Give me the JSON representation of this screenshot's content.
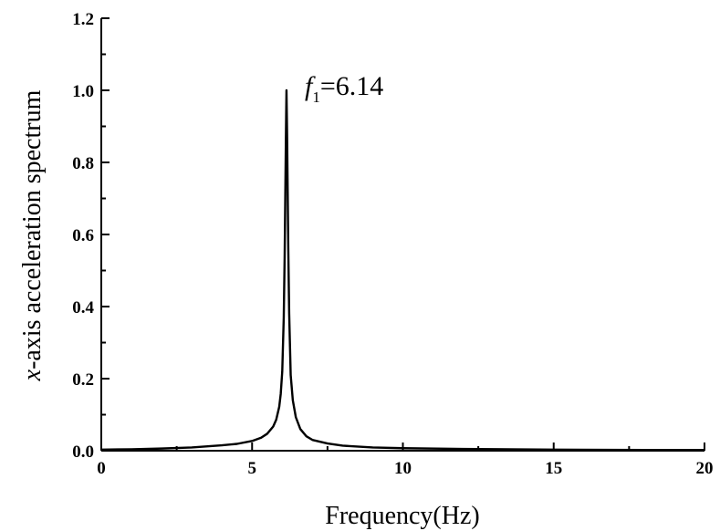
{
  "chart_data": {
    "type": "line",
    "title": "",
    "xlabel": "Frequency(Hz)",
    "ylabel_italic": "x",
    "ylabel_rest": "-axis acceleration spectrum",
    "xlim": [
      0,
      20
    ],
    "ylim": [
      0,
      1.2
    ],
    "x_ticks": [
      0,
      5,
      10,
      15,
      20
    ],
    "y_ticks": [
      0.0,
      0.2,
      0.4,
      0.6,
      0.8,
      1.0,
      1.2
    ],
    "x_tick_labels": [
      "0",
      "5",
      "10",
      "15",
      "20"
    ],
    "y_tick_labels": [
      "0.0",
      "0.2",
      "0.4",
      "0.6",
      "0.8",
      "1.0",
      "1.2"
    ],
    "grid": false,
    "series": [
      {
        "x": [
          0,
          1,
          2,
          3,
          4,
          4.5,
          5,
          5.3,
          5.5,
          5.7,
          5.8,
          5.9,
          5.95,
          6.0,
          6.05,
          6.08,
          6.1,
          6.12,
          6.14,
          6.16,
          6.18,
          6.2,
          6.23,
          6.28,
          6.35,
          6.45,
          6.6,
          6.8,
          7.0,
          7.5,
          8,
          9,
          10,
          12,
          15,
          18,
          20
        ],
        "y": [
          0.003,
          0.004,
          0.006,
          0.009,
          0.015,
          0.019,
          0.027,
          0.036,
          0.047,
          0.067,
          0.086,
          0.122,
          0.158,
          0.22,
          0.37,
          0.54,
          0.7,
          0.86,
          1.0,
          0.88,
          0.72,
          0.56,
          0.38,
          0.21,
          0.14,
          0.093,
          0.06,
          0.04,
          0.03,
          0.02,
          0.014,
          0.009,
          0.007,
          0.005,
          0.003,
          0.002,
          0.002
        ]
      }
    ],
    "annotation": {
      "label_main": "f",
      "label_sub": "1",
      "label_value": "=6.14",
      "x": 6.14,
      "y": 1.0
    }
  }
}
